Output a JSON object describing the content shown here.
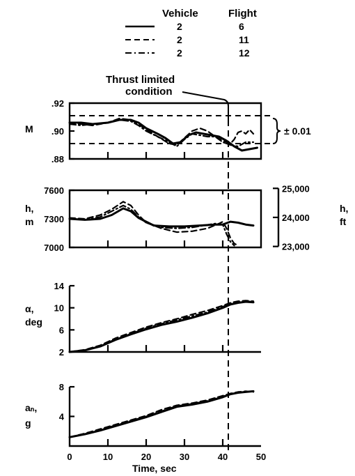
{
  "legend": {
    "headers": [
      "Vehicle",
      "Flight"
    ],
    "entries": [
      {
        "vehicle": "2",
        "flight": "6",
        "dash": "solid"
      },
      {
        "vehicle": "2",
        "flight": "11",
        "dash": "dashed"
      },
      {
        "vehicle": "2",
        "flight": "12",
        "dash": "dashdot"
      }
    ]
  },
  "annotation": {
    "line1": "Thrust limited",
    "line2": "condition",
    "band": "± 0.01"
  },
  "chart_data": {
    "type": "line",
    "x_axis": {
      "label": "Time, sec",
      "range": [
        0,
        50
      ],
      "ticks": [
        "0",
        "10",
        "20",
        "30",
        "40",
        "50"
      ]
    },
    "panels": [
      {
        "ylabel_lines": [
          "M"
        ],
        "ylim": [
          0.88,
          0.92
        ],
        "yticks": [
          {
            "v": 0.92,
            "t": ".92"
          },
          {
            "v": 0.9,
            "t": ".90"
          },
          {
            "v": 0.88,
            "t": ".88"
          }
        ],
        "reference_lines": [
          0.911,
          0.891
        ],
        "series": [
          {
            "flight": "6",
            "dash": "solid",
            "points": [
              [
                0,
                0.906
              ],
              [
                3,
                0.906
              ],
              [
                6,
                0.905
              ],
              [
                10,
                0.906
              ],
              [
                13,
                0.908
              ],
              [
                16,
                0.908
              ],
              [
                18,
                0.906
              ],
              [
                20,
                0.902
              ],
              [
                23,
                0.898
              ],
              [
                25,
                0.895
              ],
              [
                27,
                0.891
              ],
              [
                29,
                0.892
              ],
              [
                31,
                0.897
              ],
              [
                33,
                0.899
              ],
              [
                35,
                0.898
              ],
              [
                37,
                0.897
              ],
              [
                39,
                0.896
              ],
              [
                41,
                0.893
              ],
              [
                43,
                0.889
              ],
              [
                45,
                0.886
              ],
              [
                47,
                0.887
              ],
              [
                49,
                0.888
              ]
            ]
          },
          {
            "flight": "11",
            "dash": "dashed",
            "points": [
              [
                0,
                0.905
              ],
              [
                3,
                0.905
              ],
              [
                6,
                0.904
              ],
              [
                10,
                0.906
              ],
              [
                13,
                0.909
              ],
              [
                16,
                0.908
              ],
              [
                18,
                0.905
              ],
              [
                20,
                0.901
              ],
              [
                23,
                0.896
              ],
              [
                26,
                0.891
              ],
              [
                28,
                0.89
              ],
              [
                30,
                0.895
              ],
              [
                32,
                0.9
              ],
              [
                34,
                0.902
              ],
              [
                36,
                0.9
              ],
              [
                38,
                0.896
              ],
              [
                40,
                0.893
              ],
              [
                42,
                0.891
              ],
              [
                43,
                0.894
              ],
              [
                44,
                0.899
              ],
              [
                45,
                0.9
              ],
              [
                46,
                0.898
              ],
              [
                47,
                0.901
              ],
              [
                48,
                0.898
              ]
            ]
          },
          {
            "flight": "12",
            "dash": "dashdot",
            "points": [
              [
                0,
                0.905
              ],
              [
                3,
                0.904
              ],
              [
                6,
                0.905
              ],
              [
                10,
                0.906
              ],
              [
                13,
                0.908
              ],
              [
                16,
                0.907
              ],
              [
                18,
                0.904
              ],
              [
                20,
                0.9
              ],
              [
                23,
                0.896
              ],
              [
                26,
                0.892
              ],
              [
                28,
                0.889
              ],
              [
                30,
                0.894
              ],
              [
                32,
                0.898
              ],
              [
                34,
                0.897
              ],
              [
                36,
                0.896
              ],
              [
                38,
                0.896
              ],
              [
                40,
                0.892
              ],
              [
                42,
                0.89
              ],
              [
                44,
                0.889
              ],
              [
                46,
                0.892
              ],
              [
                48,
                0.892
              ]
            ]
          }
        ]
      },
      {
        "ylabel_lines": [
          "h,",
          "m"
        ],
        "ylim": [
          7000,
          7600
        ],
        "yticks": [
          {
            "v": 7600,
            "t": "7600"
          },
          {
            "v": 7300,
            "t": "7300"
          },
          {
            "v": 7000,
            "t": "7000"
          }
        ],
        "secondary_axis": {
          "label_lines": [
            "h,",
            "ft"
          ],
          "ticks": [
            {
              "v": 7620,
              "t": "25,000"
            },
            {
              "v": 7315,
              "t": "24,000"
            },
            {
              "v": 7010,
              "t": "23,000"
            }
          ]
        },
        "series": [
          {
            "flight": "6",
            "dash": "solid",
            "points": [
              [
                0,
                7300
              ],
              [
                4,
                7290
              ],
              [
                8,
                7300
              ],
              [
                11,
                7340
              ],
              [
                14,
                7410
              ],
              [
                16,
                7380
              ],
              [
                18,
                7310
              ],
              [
                20,
                7270
              ],
              [
                22,
                7230
              ],
              [
                26,
                7220
              ],
              [
                30,
                7220
              ],
              [
                34,
                7230
              ],
              [
                38,
                7240
              ],
              [
                40,
                7240
              ],
              [
                42,
                7270
              ],
              [
                44,
                7260
              ],
              [
                46,
                7240
              ],
              [
                48,
                7230
              ]
            ]
          },
          {
            "flight": "11",
            "dash": "dashed",
            "points": [
              [
                0,
                7310
              ],
              [
                4,
                7300
              ],
              [
                8,
                7340
              ],
              [
                11,
                7400
              ],
              [
                14,
                7480
              ],
              [
                16,
                7440
              ],
              [
                18,
                7340
              ],
              [
                20,
                7260
              ],
              [
                24,
                7200
              ],
              [
                28,
                7160
              ],
              [
                32,
                7170
              ],
              [
                36,
                7200
              ],
              [
                39,
                7250
              ],
              [
                40,
                7270
              ],
              [
                41,
                7200
              ],
              [
                42,
                7100
              ],
              [
                43,
                7040
              ],
              [
                44,
                7020
              ]
            ]
          },
          {
            "flight": "12",
            "dash": "dashdot",
            "points": [
              [
                0,
                7300
              ],
              [
                4,
                7290
              ],
              [
                8,
                7320
              ],
              [
                11,
                7380
              ],
              [
                14,
                7440
              ],
              [
                16,
                7400
              ],
              [
                18,
                7320
              ],
              [
                20,
                7260
              ],
              [
                24,
                7210
              ],
              [
                28,
                7200
              ],
              [
                32,
                7210
              ],
              [
                35,
                7230
              ],
              [
                38,
                7250
              ],
              [
                40,
                7240
              ],
              [
                41,
                7140
              ],
              [
                42,
                7060
              ],
              [
                43,
                7020
              ]
            ]
          }
        ]
      },
      {
        "ylabel_lines": [
          "α,",
          "deg"
        ],
        "ylim": [
          2,
          14
        ],
        "yticks": [
          {
            "v": 14,
            "t": "14"
          },
          {
            "v": 10,
            "t": "10"
          },
          {
            "v": 6,
            "t": "6"
          },
          {
            "v": 2,
            "t": "2"
          }
        ],
        "series": [
          {
            "flight": "6",
            "dash": "solid",
            "points": [
              [
                0,
                2
              ],
              [
                4,
                2.3
              ],
              [
                8,
                3
              ],
              [
                12,
                4.2
              ],
              [
                16,
                5.2
              ],
              [
                20,
                6.1
              ],
              [
                24,
                6.9
              ],
              [
                28,
                7.5
              ],
              [
                32,
                8.2
              ],
              [
                36,
                9
              ],
              [
                40,
                10
              ],
              [
                42,
                10.6
              ],
              [
                44,
                10.9
              ],
              [
                46,
                11.1
              ],
              [
                48,
                11
              ]
            ]
          },
          {
            "flight": "11",
            "dash": "dashed",
            "points": [
              [
                0,
                2
              ],
              [
                4,
                2.4
              ],
              [
                8,
                3.2
              ],
              [
                12,
                4.5
              ],
              [
                16,
                5.5
              ],
              [
                20,
                6.5
              ],
              [
                24,
                7.3
              ],
              [
                28,
                8
              ],
              [
                32,
                8.8
              ],
              [
                36,
                9.5
              ],
              [
                40,
                10.4
              ],
              [
                42,
                10.9
              ],
              [
                44,
                11.2
              ],
              [
                46,
                11.3
              ],
              [
                48,
                11.2
              ]
            ]
          },
          {
            "flight": "12",
            "dash": "dashdot",
            "points": [
              [
                0,
                2
              ],
              [
                4,
                2.3
              ],
              [
                8,
                3.1
              ],
              [
                12,
                4.3
              ],
              [
                16,
                5.3
              ],
              [
                20,
                6.3
              ],
              [
                24,
                7.1
              ],
              [
                28,
                7.8
              ],
              [
                32,
                8.5
              ],
              [
                36,
                9.2
              ],
              [
                40,
                10.2
              ],
              [
                42,
                10.8
              ],
              [
                44,
                11
              ],
              [
                46,
                11.2
              ],
              [
                48,
                11.1
              ]
            ]
          }
        ]
      },
      {
        "ylabel_lines": [
          "aₙ,",
          "g"
        ],
        "ylim": [
          0,
          8
        ],
        "yticks": [
          {
            "v": 8,
            "t": "8"
          },
          {
            "v": 4,
            "t": "4"
          }
        ],
        "series": [
          {
            "flight": "6",
            "dash": "solid",
            "points": [
              [
                0,
                1.2
              ],
              [
                4,
                1.6
              ],
              [
                8,
                2.1
              ],
              [
                12,
                2.7
              ],
              [
                16,
                3.3
              ],
              [
                20,
                3.9
              ],
              [
                24,
                4.6
              ],
              [
                28,
                5.3
              ],
              [
                32,
                5.6
              ],
              [
                36,
                6
              ],
              [
                40,
                6.6
              ],
              [
                42,
                7
              ],
              [
                44,
                7.2
              ],
              [
                46,
                7.3
              ],
              [
                48,
                7.4
              ]
            ]
          },
          {
            "flight": "11",
            "dash": "dashed",
            "points": [
              [
                0,
                1.2
              ],
              [
                4,
                1.7
              ],
              [
                8,
                2.3
              ],
              [
                12,
                2.9
              ],
              [
                16,
                3.5
              ],
              [
                20,
                4.1
              ],
              [
                24,
                4.9
              ],
              [
                28,
                5.5
              ],
              [
                32,
                5.8
              ],
              [
                36,
                6.2
              ],
              [
                40,
                6.8
              ],
              [
                42,
                7.1
              ],
              [
                44,
                7.3
              ],
              [
                46,
                7.4
              ],
              [
                48,
                7.3
              ]
            ]
          },
          {
            "flight": "12",
            "dash": "dashdot",
            "points": [
              [
                0,
                1.2
              ],
              [
                4,
                1.6
              ],
              [
                8,
                2.2
              ],
              [
                12,
                2.8
              ],
              [
                16,
                3.4
              ],
              [
                20,
                4
              ],
              [
                24,
                4.7
              ],
              [
                28,
                5.4
              ],
              [
                32,
                5.7
              ],
              [
                36,
                6.1
              ],
              [
                40,
                6.7
              ],
              [
                42,
                7
              ],
              [
                44,
                7.2
              ],
              [
                46,
                7.3
              ],
              [
                48,
                7.4
              ]
            ]
          }
        ]
      }
    ]
  }
}
